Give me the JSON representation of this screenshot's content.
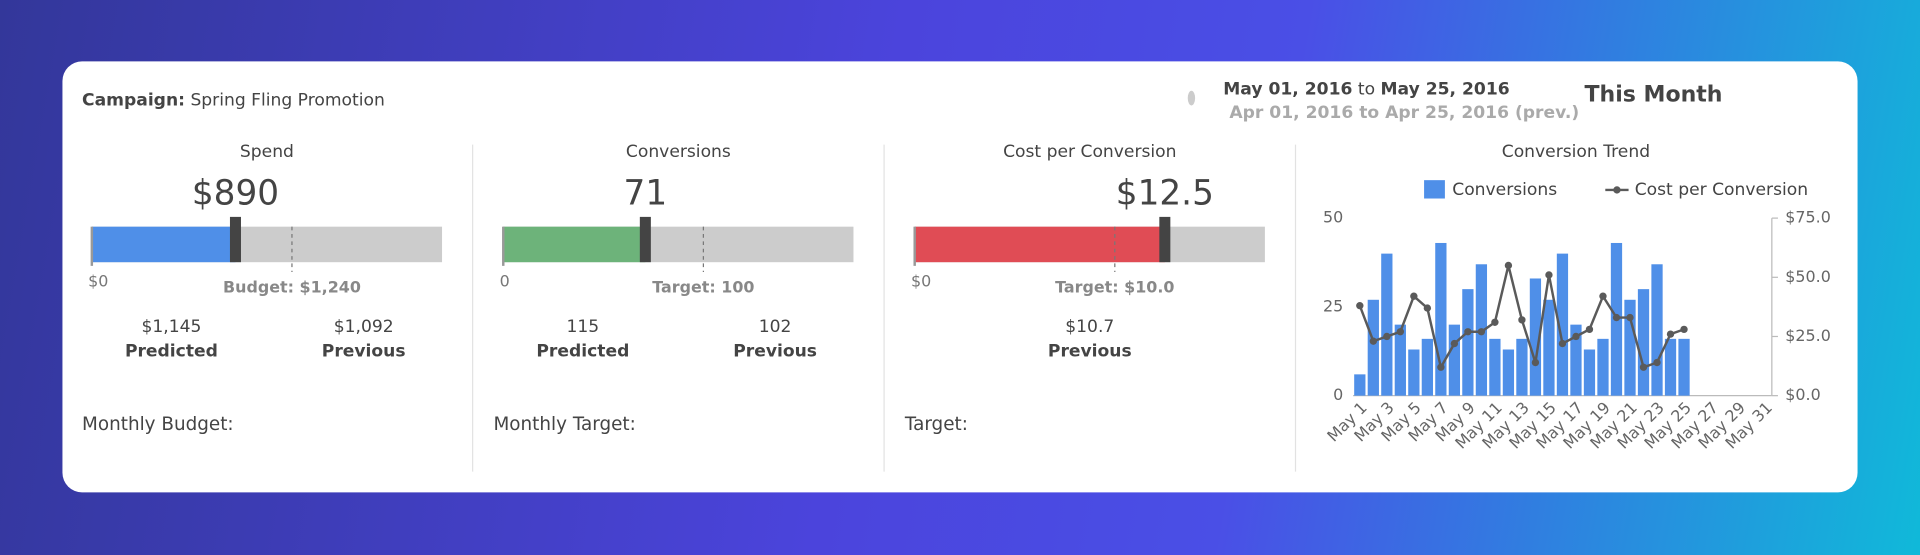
{
  "header": {
    "campaign_label": "Campaign:",
    "campaign_name": "Spring Fling Promotion",
    "current": {
      "start": "May 01, 2016",
      "to": "to",
      "end": "May 25, 2016"
    },
    "previous": "Apr 01, 2016 to Apr 25, 2016 (prev.)",
    "period": "This Month"
  },
  "gauges": [
    {
      "title": "Spend",
      "value": 890,
      "value_label": "$890",
      "xlim": [
        0,
        2170
      ],
      "ticks": [
        {
          "value": 0,
          "label": "$0"
        }
      ],
      "marker": {
        "value": 1240,
        "label": "Budget: $1,240"
      },
      "color": "#4f8fe8",
      "stats": [
        {
          "value": "$1,145",
          "label": "Predicted"
        },
        {
          "value": "$1,092",
          "label": "Previous"
        }
      ],
      "footer": "Monthly Budget:"
    },
    {
      "title": "Conversions",
      "value": 71,
      "xlim": [
        0,
        175
      ],
      "ticks": [
        0
      ],
      "marker": {
        "value": 100,
        "label": "Target: 100"
      },
      "color": "#6db37a",
      "stats": [
        {
          "value": "115",
          "label": "Predicted"
        },
        {
          "value": "102",
          "label": "Previous"
        }
      ],
      "footer": "Monthly Target:"
    },
    {
      "title": "Cost per Conversion",
      "value": 12.5,
      "value_label": "$12.5",
      "xlim": [
        0,
        17.5
      ],
      "ticks": [
        {
          "value": 0,
          "label": "$0"
        }
      ],
      "marker": {
        "value": 10,
        "label": "Target: $10.0"
      },
      "color": "#e04c55",
      "stats": [
        {
          "value": "$10.7",
          "label": "Previous"
        }
      ],
      "footer": "Target:"
    }
  ],
  "chart_data": {
    "type": "bar-line",
    "title": "Conversion Trend",
    "categories": [
      "May 1",
      null,
      "May 3",
      null,
      "May 5",
      null,
      "May 7",
      null,
      "May 9",
      null,
      "May 11",
      null,
      "May 13",
      null,
      "May 15",
      null,
      "May 17",
      null,
      "May 19",
      null,
      "May 21",
      null,
      "May 23",
      null,
      "May 25",
      null,
      "May 27",
      null,
      "May 29",
      null,
      "May 31"
    ],
    "series": [
      {
        "name": "Conversions",
        "type": "bar",
        "color": "#4f8fe8",
        "values": [
          6,
          27,
          40,
          20,
          13,
          16,
          43,
          20,
          30,
          37,
          16,
          13,
          16,
          33,
          27,
          40,
          20,
          13,
          16,
          43,
          27,
          30,
          37,
          16,
          16,
          null,
          null,
          null,
          null,
          null,
          null
        ]
      },
      {
        "name": "Cost per Conversion",
        "type": "line",
        "axis": "y2",
        "color": "#5a5a5a",
        "values": [
          38,
          23,
          25,
          27,
          42,
          37,
          12,
          22,
          27,
          27,
          31,
          55,
          32,
          14,
          51,
          22,
          25,
          28,
          42,
          33,
          33,
          12,
          14,
          26,
          28,
          null,
          null,
          null,
          null,
          null,
          null
        ]
      }
    ],
    "ylim": [
      0,
      50
    ],
    "yticks": [
      0,
      25,
      50
    ],
    "y2lim": [
      0,
      75
    ],
    "y2ticks": [
      {
        "value": 0,
        "label": "$0.0"
      },
      {
        "value": 25,
        "label": "$25.0"
      },
      {
        "value": 50,
        "label": "$50.0"
      },
      {
        "value": 75,
        "label": "$75.0"
      }
    ],
    "legend": "top"
  }
}
